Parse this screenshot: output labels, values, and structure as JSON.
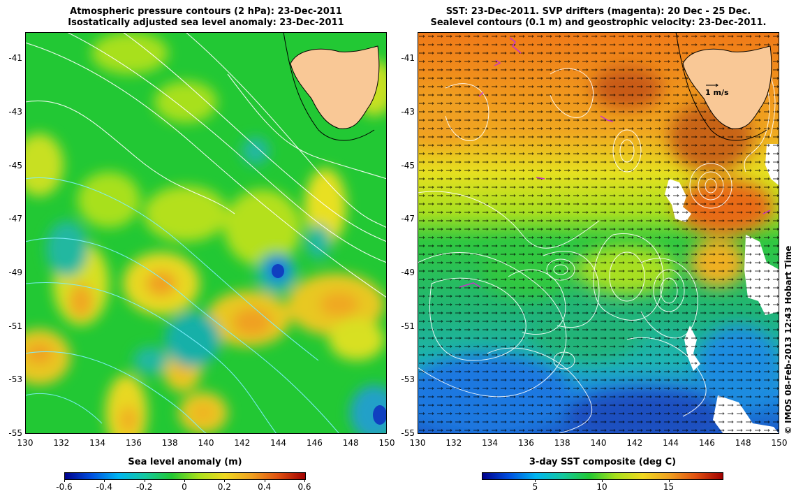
{
  "left": {
    "title_line1": "Atmospheric pressure contours (2 hPa): 23-Dec-2011",
    "title_line2": "Isostatically adjusted sea level anomaly: 23-Dec-2011",
    "colorbar_title": "Sea level anomaly (m)",
    "colorbar_ticks": [
      "-0.6",
      "-0.4",
      "-0.2",
      "0",
      "0.2",
      "0.4",
      "0.6"
    ],
    "colorbar_range": [
      -0.6,
      0.6
    ],
    "colorbar_tick_values": [
      -0.6,
      -0.4,
      -0.2,
      0,
      0.2,
      0.4,
      0.6
    ]
  },
  "right": {
    "title_line1": "SST: 23-Dec-2011. SVP drifters (magenta): 20 Dec - 25 Dec.",
    "title_line2": "Sealevel contours (0.1 m) and geostrophic velocity: 23-Dec-2011.",
    "colorbar_title": "3-day SST composite (deg C)",
    "colorbar_ticks": [
      "5",
      "10",
      "15"
    ],
    "colorbar_range": [
      1,
      19
    ],
    "colorbar_tick_values": [
      5,
      10,
      15
    ],
    "velocity_scale_label": "1 m/s"
  },
  "axes": {
    "lat_labels": [
      "-41",
      "-43",
      "-45",
      "-47",
      "-49",
      "-51",
      "-53",
      "-55"
    ],
    "lat_values": [
      -41,
      -43,
      -45,
      -47,
      -49,
      -51,
      -53,
      -55
    ],
    "lat_range": [
      -55,
      -40
    ],
    "lon_labels": [
      "130",
      "132",
      "134",
      "136",
      "138",
      "140",
      "142",
      "144",
      "146",
      "148",
      "150"
    ],
    "lon_values": [
      130,
      132,
      134,
      136,
      138,
      140,
      142,
      144,
      146,
      148,
      150
    ],
    "lon_range": [
      130,
      150
    ]
  },
  "copyright": "© IMOS 08-Feb-2013 12:43 Hobart Time",
  "colors": {
    "land": "#f9c896",
    "left_background": "#22c834",
    "right_warm": "#f08c1e",
    "drifter": "#c832c8"
  }
}
